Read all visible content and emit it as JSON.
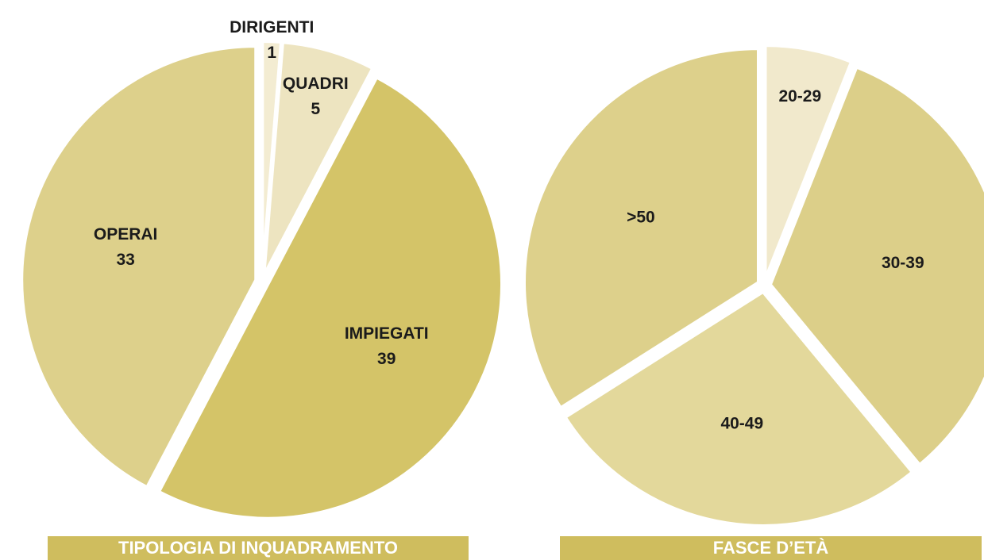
{
  "chart_data": [
    {
      "type": "pie",
      "title": "TIPOLOGIA DI INQUADRAMENTO",
      "categories": [
        "DIRIGENTI",
        "QUADRI",
        "IMPIEGATI",
        "OPERAI"
      ],
      "values": [
        1,
        5,
        39,
        33
      ],
      "colors": [
        "#f3ecd2",
        "#ede4c0",
        "#d4c468",
        "#ddd08b"
      ],
      "data_labels": true
    },
    {
      "type": "pie",
      "title": "FASCE D’ETÀ",
      "categories": [
        "20-29",
        "30-39",
        "40-49",
        ">50"
      ],
      "values": [
        6,
        33,
        27,
        34
      ],
      "colors": [
        "#f1e9cc",
        "#dccf89",
        "#e3d89b",
        "#ddd08b"
      ],
      "data_labels": false
    }
  ]
}
